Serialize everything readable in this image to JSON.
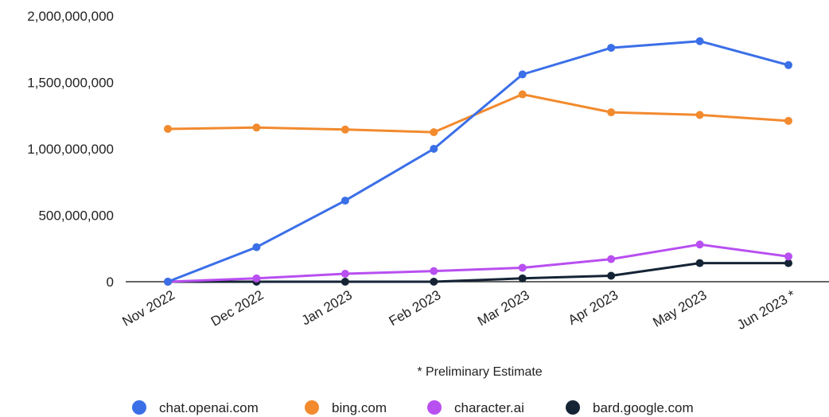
{
  "chart_data": {
    "type": "line",
    "title": "",
    "xlabel": "",
    "ylabel": "",
    "categories": [
      "Nov 2022",
      "Dec 2022",
      "Jan 2023",
      "Feb 2023",
      "Mar 2023",
      "Apr 2023",
      "May 2023",
      "Jun 2023 *"
    ],
    "ylim": [
      0,
      2000000000
    ],
    "yticks": [
      0,
      500000000,
      1000000000,
      1500000000,
      2000000000
    ],
    "ytick_labels": [
      "0",
      "500,000,000",
      "1,000,000,000",
      "1,500,000,000",
      "2,000,000,000"
    ],
    "grid": false,
    "legend": "bottom",
    "note": "* Preliminary Estimate",
    "series": [
      {
        "name": "chat.openai.com",
        "color": "#3b6fe8",
        "values": [
          0,
          260000000,
          610000000,
          1000000000,
          1560000000,
          1760000000,
          1810000000,
          1630000000
        ]
      },
      {
        "name": "bing.com",
        "color": "#f28a2e",
        "values": [
          1150000000,
          1160000000,
          1145000000,
          1125000000,
          1410000000,
          1275000000,
          1255000000,
          1210000000
        ]
      },
      {
        "name": "character.ai",
        "color": "#b84ff0",
        "values": [
          0,
          25000000,
          60000000,
          80000000,
          105000000,
          170000000,
          280000000,
          190000000
        ]
      },
      {
        "name": "bard.google.com",
        "color": "#152435",
        "values": [
          0,
          0,
          0,
          0,
          25000000,
          45000000,
          140000000,
          140000000
        ]
      }
    ]
  }
}
